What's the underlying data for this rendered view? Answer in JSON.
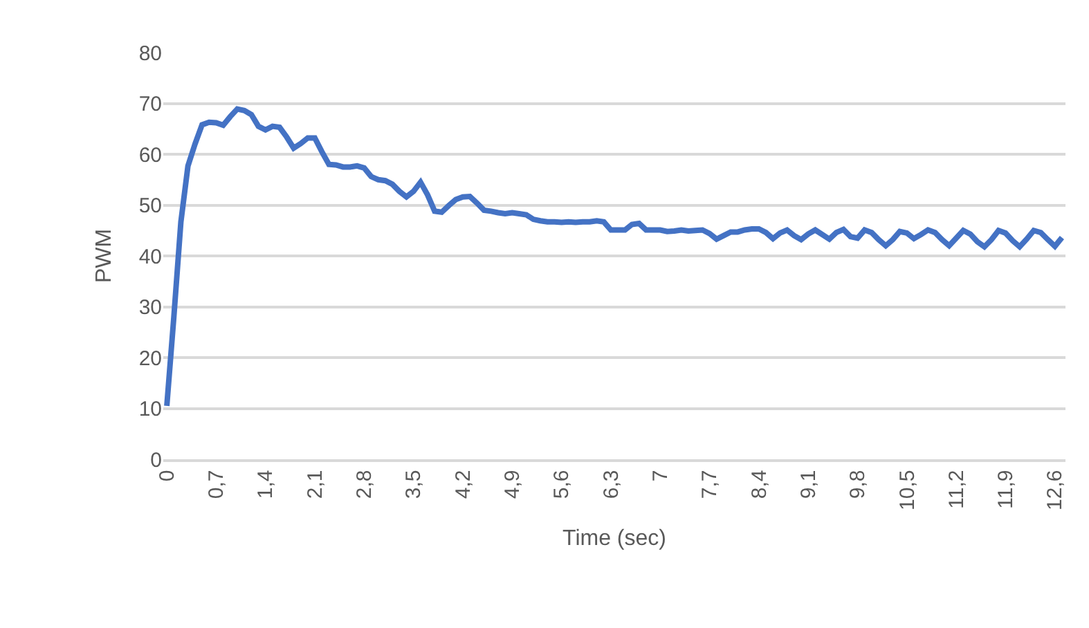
{
  "chart_data": {
    "type": "line",
    "xlabel": "Time (sec)",
    "ylabel": "PWM",
    "categories": [
      "0",
      null,
      null,
      null,
      null,
      null,
      null,
      "0,7",
      null,
      null,
      null,
      null,
      null,
      null,
      "1,4",
      null,
      null,
      null,
      null,
      null,
      null,
      "2,1",
      null,
      null,
      null,
      null,
      null,
      null,
      "2,8",
      null,
      null,
      null,
      null,
      null,
      null,
      "3,5",
      null,
      null,
      null,
      null,
      null,
      null,
      "4,2",
      null,
      null,
      null,
      null,
      null,
      null,
      "4,9",
      null,
      null,
      null,
      null,
      null,
      null,
      "5,6",
      null,
      null,
      null,
      null,
      null,
      null,
      "6,3",
      null,
      null,
      null,
      null,
      null,
      null,
      "7",
      null,
      null,
      null,
      null,
      null,
      null,
      "7,7",
      null,
      null,
      null,
      null,
      null,
      null,
      "8,4",
      null,
      null,
      null,
      null,
      null,
      null,
      "9,1",
      null,
      null,
      null,
      null,
      null,
      null,
      "9,8",
      null,
      null,
      null,
      null,
      null,
      null,
      "10,5",
      null,
      null,
      null,
      null,
      null,
      null,
      "11,2",
      null,
      null,
      null,
      null,
      null,
      null,
      "11,9",
      null,
      null,
      null,
      null,
      null,
      null,
      "12,6",
      null
    ],
    "series": [
      {
        "color": "#4472c4",
        "values": [
          10.5,
          28,
          46.7,
          57.7,
          62,
          65.8,
          66.3,
          66.2,
          65.7,
          67.4,
          68.9,
          68.6,
          67.8,
          65.5,
          64.8,
          65.5,
          65.3,
          63.4,
          61.2,
          62.1,
          63.2,
          63.2,
          60.5,
          58,
          57.9,
          57.5,
          57.5,
          57.7,
          57.3,
          55.6,
          55,
          54.8,
          54.1,
          52.7,
          51.6,
          52.7,
          54.5,
          52,
          48.8,
          48.6,
          49.9,
          51.1,
          51.6,
          51.7,
          50.4,
          49,
          48.8,
          48.5,
          48.3,
          48.5,
          48.3,
          48.1,
          47.2,
          46.9,
          46.7,
          46.7,
          46.6,
          46.7,
          46.6,
          46.7,
          46.7,
          46.9,
          46.7,
          45.1,
          45.1,
          45.1,
          46.2,
          46.4,
          45.1,
          45.1,
          45.1,
          44.8,
          44.9,
          45.1,
          44.9,
          45,
          45.1,
          44.4,
          43.3,
          44,
          44.7,
          44.7,
          45.1,
          45.3,
          45.3,
          44.6,
          43.4,
          44.5,
          45.1,
          44,
          43.2,
          44.3,
          45.1,
          44.2,
          43.3,
          44.6,
          45.2,
          43.8,
          43.5,
          45.1,
          44.6,
          43.2,
          42,
          43.2,
          44.8,
          44.5,
          43.4,
          44.2,
          45.1,
          44.6,
          43.2,
          42,
          43.5,
          45,
          44.3,
          42.8,
          41.8,
          43.2,
          45,
          44.5,
          43,
          41.8,
          43.3,
          45,
          44.6,
          43.2,
          41.9,
          43.6
        ]
      }
    ],
    "ylim": [
      0,
      80
    ],
    "yticks": [
      0,
      10,
      20,
      30,
      40,
      50,
      60,
      70,
      80
    ],
    "grid": "y",
    "marker": "none",
    "line_style": "solid"
  }
}
